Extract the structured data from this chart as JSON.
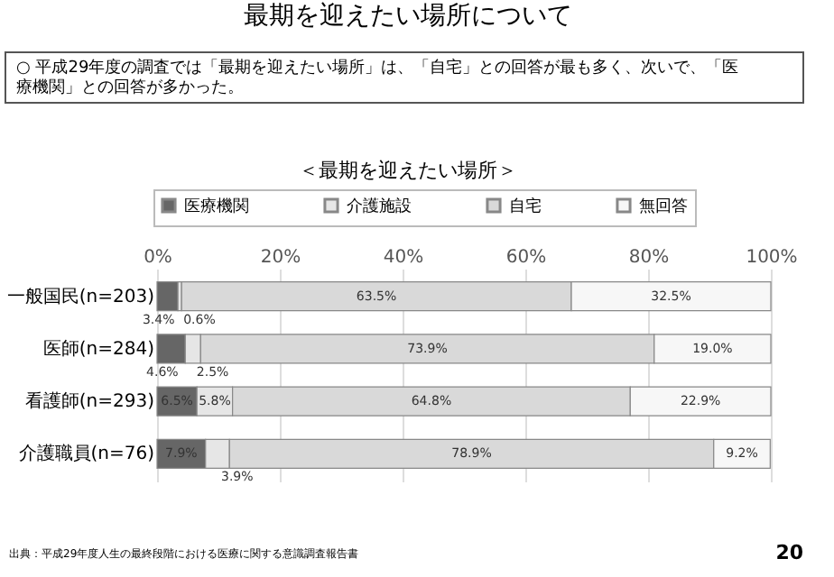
{
  "chart_data": {
    "type": "bar",
    "orientation": "horizontal",
    "stacked": true,
    "title": "最期を迎えたい場所について",
    "subtitle": "○ 平成29年度の調査では「最期を迎えたい場所」は、「自宅」との回答が最も多く、次いで、「医療機関」との回答が多かった。",
    "annotations": [
      "＜最期を迎えたい場所＞",
      "出典：平成29年度人生の最終段階における医療に関する意識調査報告書",
      "20"
    ],
    "categories": [
      "一般国民(n=203)",
      "医師(n=284)",
      "看護師(n=293)",
      "介護職員(n=76)"
    ],
    "series": [
      {
        "name": "医療機関",
        "color": "#666666",
        "values": [
          3.4,
          4.6,
          6.5,
          7.9
        ],
        "value_labels": [
          "3.4%",
          "4.6%",
          "6.5%",
          "7.9%"
        ]
      },
      {
        "name": "介護施設",
        "color": "#e6e6e6",
        "values": [
          0.6,
          2.5,
          5.8,
          3.9
        ],
        "value_labels": [
          "0.6%",
          "2.5%",
          "5.8%",
          "3.9%"
        ]
      },
      {
        "name": "自宅",
        "color": "#d9d9d9",
        "values": [
          63.5,
          73.9,
          64.8,
          78.9
        ],
        "value_labels": [
          "63.5%",
          "73.9%",
          "64.8%",
          "78.9%"
        ]
      },
      {
        "name": "無回答",
        "color": "#f7f7f7",
        "values": [
          32.5,
          19.0,
          22.9,
          9.2
        ],
        "value_labels": [
          "32.5%",
          "19.0%",
          "22.9%",
          "9.2%"
        ]
      }
    ],
    "xlim": [
      0,
      100
    ],
    "xticks": [
      {
        "value": 0,
        "label": "0%"
      },
      {
        "value": 20,
        "label": "20%"
      },
      {
        "value": 40,
        "label": "40%"
      },
      {
        "value": 60,
        "label": "60%"
      },
      {
        "value": 80,
        "label": "80%"
      },
      {
        "value": 100,
        "label": "100%"
      }
    ],
    "grid": "x",
    "legend": "top"
  }
}
